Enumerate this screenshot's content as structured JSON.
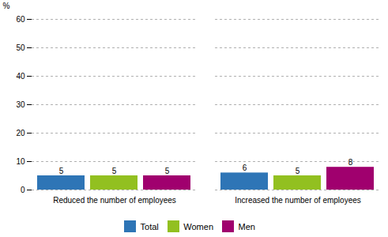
{
  "chart_data": {
    "type": "bar",
    "categories": [
      "Reduced the number of employees",
      "Increased the number of employees"
    ],
    "series": [
      {
        "name": "Total",
        "color": "#2E75B6",
        "values": [
          5,
          6
        ]
      },
      {
        "name": "Women",
        "color": "#92C020",
        "values": [
          5,
          5
        ]
      },
      {
        "name": "Men",
        "color": "#A0006E",
        "values": [
          5,
          8
        ]
      }
    ],
    "ylabel": "%",
    "ylim": [
      0,
      60
    ],
    "yticks": [
      0,
      10,
      20,
      30,
      40,
      50,
      60
    ],
    "grid": true,
    "legend": "bottom",
    "data_labels": true
  }
}
